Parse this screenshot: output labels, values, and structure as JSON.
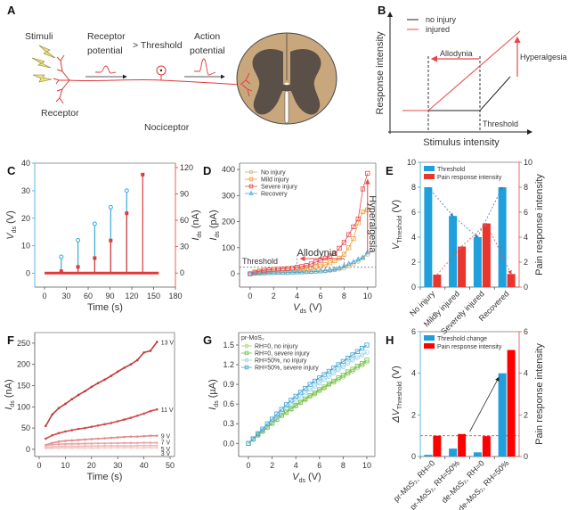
{
  "diagram_A": {
    "label": "A",
    "stimuli": "Stimuli",
    "receptor_potential": [
      "Receptor",
      "potential"
    ],
    "threshold": "> Threshold",
    "action_potential": [
      "Action",
      "potential"
    ],
    "receptor": "Receptor",
    "nociceptor": "Nociceptor",
    "colors": {
      "nerve": "#e0393b",
      "bolt": "#f0e07a",
      "white_matter": "#c9a77c",
      "gray_matter": "#5a5048"
    }
  },
  "diagram_B": {
    "label": "B",
    "legend": [
      "no injury",
      "injured"
    ],
    "allodynia": "Allodynia",
    "hyperalgesia": "Hyperalgesia",
    "threshold": "Threshold",
    "xlabel": "Stimulus intensity",
    "ylabel": "Response intensity",
    "colors": {
      "no_injury": "#222222",
      "injured": "#e8474a"
    }
  },
  "chart_data": [
    {
      "panel": "C",
      "type": "stem",
      "xlabel": "Time (s)",
      "ylabel": {
        "main": "V",
        "sub": "ds",
        "unit": " (V)"
      },
      "y2label": {
        "main": "I",
        "sub": "ds",
        "unit": " (nA)"
      },
      "xlim": [
        -13.5,
        180
      ],
      "ylim": [
        -5,
        40
      ],
      "y2lim": [
        -16,
        125
      ],
      "xticks": [
        0,
        30,
        60,
        90,
        120,
        150,
        180
      ],
      "yticks": [
        0,
        10,
        20,
        30,
        40
      ],
      "y2ticks": [
        0,
        30,
        60,
        90,
        120
      ],
      "series": [
        {
          "axis": "left",
          "marker": "open-circle",
          "color": "#3aa8d8",
          "x": [
            23,
            46,
            69,
            91,
            113
          ],
          "values": [
            6,
            12,
            18,
            24,
            30
          ]
        },
        {
          "axis": "right",
          "marker": "filled-square",
          "color": "#e03a3a",
          "x": [
            23,
            46,
            69,
            91,
            113,
            135
          ],
          "values": [
            2,
            7,
            17,
            37,
            68,
            112
          ],
          "baseline_range": [
            0,
            157
          ]
        }
      ]
    },
    {
      "panel": "D",
      "type": "line",
      "xlabel": {
        "main": "V",
        "sub": "ds",
        "unit": " (V)"
      },
      "ylabel": {
        "main": "I",
        "sub": "ds",
        "unit": " (pA)"
      },
      "xlim": [
        -0.9,
        10.7
      ],
      "ylim": [
        -51,
        424
      ],
      "xticks": [
        0,
        2,
        4,
        6,
        8,
        10
      ],
      "yticks": [
        0,
        100,
        200,
        300,
        400
      ],
      "legend_position": "top-left",
      "x": [
        0,
        0.4,
        0.8,
        1.2,
        1.6,
        2,
        2.4,
        2.8,
        3.2,
        3.6,
        4,
        4.4,
        4.8,
        5.2,
        5.6,
        6,
        6.4,
        6.8,
        7.2,
        7.6,
        8,
        8.4,
        8.8,
        9.2,
        9.6,
        10
      ],
      "series": [
        {
          "name": "No injury",
          "marker": "circle",
          "color": "#c8b48a",
          "values": [
            0,
            1,
            2,
            3,
            3,
            4,
            4,
            5,
            5,
            6,
            6,
            7,
            7,
            8,
            9,
            10,
            11,
            13,
            15,
            18,
            22,
            30,
            38,
            48,
            60,
            75
          ]
        },
        {
          "name": "Mild injury",
          "marker": "square",
          "color": "#f39c35",
          "values": [
            0,
            3,
            6,
            8,
            10,
            11,
            12,
            13,
            14,
            15,
            16,
            18,
            20,
            22,
            26,
            30,
            35,
            42,
            50,
            60,
            75,
            100,
            135,
            195,
            238,
            245
          ]
        },
        {
          "name": "Severe injury",
          "marker": "square",
          "color": "#e8474a",
          "values": [
            0,
            6,
            10,
            13,
            15,
            17,
            18,
            19,
            20,
            22,
            25,
            28,
            32,
            38,
            45,
            52,
            60,
            68,
            78,
            98,
            120,
            150,
            180,
            210,
            325,
            385
          ]
        },
        {
          "name": "Recovery",
          "marker": "triangle",
          "color": "#45a8d8",
          "values": [
            0,
            1,
            2,
            2,
            3,
            3,
            4,
            4,
            5,
            5,
            6,
            6,
            7,
            8,
            9,
            10,
            12,
            14,
            17,
            22,
            30,
            38,
            45,
            55,
            62,
            82
          ]
        }
      ],
      "annotations": {
        "threshold_label": "Threshold",
        "threshold_value": 25,
        "allodynia_label": "Allodynia",
        "allodynia_from": 8,
        "allodynia_to": 4,
        "hyperalgesia_label": "Hyperalgesia"
      }
    },
    {
      "panel": "E",
      "type": "bar",
      "categories": [
        "No injury",
        "Mildly injured",
        "Severely injured",
        "Recovered"
      ],
      "ylabel": {
        "main": "V",
        "sub": "Threshold",
        "unit": " (V)"
      },
      "y2label": "Pain response intensity",
      "ylim": [
        0,
        10
      ],
      "y2lim": [
        0,
        10
      ],
      "yticks": [
        0,
        2,
        4,
        6,
        8,
        10
      ],
      "y2ticks": [
        0,
        2,
        4,
        6,
        8,
        10
      ],
      "legend_position": "top-left",
      "series": [
        {
          "name": "Threshold",
          "axis": "left",
          "color": "#1fa0dc",
          "values": [
            8,
            5.7,
            4,
            8
          ]
        },
        {
          "name": "Pain response intensity",
          "axis": "right",
          "color": "#e8352e",
          "values": [
            1,
            3.25,
            5.1,
            1.05
          ]
        }
      ]
    },
    {
      "panel": "F",
      "type": "line",
      "xlabel": "Time (s)",
      "ylabel": {
        "main": "I",
        "sub": "ds",
        "unit": " (nA)"
      },
      "xlim": [
        -1.7,
        51.7
      ],
      "ylim": [
        -17,
        275
      ],
      "xticks": [
        0,
        10,
        20,
        30,
        40,
        50
      ],
      "yticks": [
        0,
        50,
        100,
        150,
        200,
        250
      ],
      "x": [
        2.5,
        5,
        7.5,
        10,
        12.5,
        15,
        17.5,
        20,
        22.5,
        25,
        27.5,
        30,
        32.5,
        35,
        37.5,
        40,
        42.5,
        45
      ],
      "series": [
        {
          "name": "13 V",
          "color": "#c0393b",
          "values": [
            55,
            82,
            97,
            107,
            118,
            128,
            137,
            147,
            156,
            164,
            173,
            183,
            192,
            200,
            210,
            228,
            232,
            253
          ]
        },
        {
          "name": "11 V",
          "color": "#cc4b4b",
          "values": [
            25,
            33,
            38,
            42,
            45,
            48,
            50,
            53,
            56,
            59,
            62,
            66,
            70,
            74,
            79,
            84,
            90,
            94
          ]
        },
        {
          "name": "9 V",
          "color": "#e08a8a",
          "values": [
            10,
            15,
            18,
            20,
            21,
            22,
            23,
            24,
            25,
            26,
            27,
            28,
            29,
            30,
            30,
            31,
            32,
            32
          ]
        },
        {
          "name": "7 V",
          "color": "#eaa5a5",
          "values": [
            9,
            11,
            12,
            12.5,
            13,
            13,
            13.5,
            13.5,
            14,
            14,
            14.5,
            14.5,
            15,
            15,
            15,
            15.5,
            15.5,
            15.5
          ]
        },
        {
          "name": "5 V",
          "color": "#f0bcbc",
          "values": [
            5,
            6,
            6.5,
            7,
            7,
            7,
            7.5,
            7.5,
            7.5,
            8,
            8,
            8,
            8,
            8,
            8.5,
            8.5,
            8.5,
            8.5
          ]
        },
        {
          "name": "3 V",
          "color": "#f5cccc",
          "values": [
            2,
            2.5,
            3,
            3,
            3,
            3,
            3,
            3,
            3,
            3.5,
            3.5,
            3.5,
            3.5,
            3.5,
            3.5,
            3.5,
            3.5,
            3.5
          ]
        }
      ]
    },
    {
      "panel": "G",
      "type": "line",
      "xlabel": {
        "main": "V",
        "sub": "ds",
        "unit": " (V)"
      },
      "ylabel": {
        "main": "I",
        "sub": "ds",
        "unit": " (µA)"
      },
      "xlim": [
        -0.83,
        10.68
      ],
      "ylim": [
        -0.2,
        1.69
      ],
      "xticks": [
        0,
        2,
        4,
        6,
        8,
        10
      ],
      "yticks": [
        "0.0",
        "0.3",
        "0.6",
        "0.9",
        "1.2",
        "1.5"
      ],
      "legend_title": "pr-MoS₂",
      "legend_position": "top-left",
      "x": [
        0,
        0.4,
        0.8,
        1.2,
        1.6,
        2,
        2.4,
        2.8,
        3.2,
        3.6,
        4,
        4.4,
        4.8,
        5.2,
        5.6,
        6,
        6.4,
        6.8,
        7.2,
        7.6,
        8,
        8.4,
        8.8,
        9.2,
        9.6,
        10
      ],
      "series": [
        {
          "name": "RH=0, no injury",
          "marker": "circle",
          "color": "#a8d060",
          "values": [
            0,
            0.06,
            0.12,
            0.18,
            0.24,
            0.3,
            0.36,
            0.42,
            0.47,
            0.52,
            0.57,
            0.62,
            0.66,
            0.71,
            0.75,
            0.8,
            0.84,
            0.89,
            0.93,
            0.97,
            1.01,
            1.06,
            1.1,
            1.15,
            1.19,
            1.24
          ]
        },
        {
          "name": "RH=0, severe injury",
          "marker": "square",
          "color": "#6cbf50",
          "values": [
            0,
            0.07,
            0.13,
            0.19,
            0.25,
            0.31,
            0.37,
            0.43,
            0.48,
            0.53,
            0.58,
            0.63,
            0.68,
            0.73,
            0.77,
            0.82,
            0.86,
            0.91,
            0.95,
            1.0,
            1.04,
            1.09,
            1.13,
            1.18,
            1.22,
            1.27
          ]
        },
        {
          "name": "RH=50%, no injury",
          "marker": "circle",
          "color": "#8fd0ea",
          "values": [
            0,
            0.07,
            0.14,
            0.2,
            0.27,
            0.34,
            0.41,
            0.47,
            0.54,
            0.6,
            0.66,
            0.72,
            0.77,
            0.82,
            0.87,
            0.92,
            0.97,
            1.02,
            1.07,
            1.12,
            1.17,
            1.22,
            1.27,
            1.31,
            1.35,
            1.39
          ]
        },
        {
          "name": "RH=50%, severe injury",
          "marker": "square",
          "color": "#3aa0d0",
          "values": [
            0,
            0.07,
            0.15,
            0.22,
            0.3,
            0.37,
            0.45,
            0.52,
            0.59,
            0.66,
            0.72,
            0.78,
            0.84,
            0.9,
            0.95,
            1.0,
            1.05,
            1.1,
            1.15,
            1.2,
            1.25,
            1.3,
            1.35,
            1.4,
            1.45,
            1.5
          ]
        }
      ]
    },
    {
      "panel": "H",
      "type": "bar",
      "categories": [
        "pr-MoS₂, RH=0",
        "pr-MoS₂, RH=50%",
        "de-MoS₂, RH=0",
        "de-MoS₂, RH=50%"
      ],
      "ylabel": {
        "main": "ΔV",
        "sub": "Threshold",
        "unit": " (V)"
      },
      "y2label": "Pain response intensity",
      "ylim": [
        0,
        6
      ],
      "y2lim": [
        0,
        6
      ],
      "yticks": [
        0,
        2,
        4,
        6
      ],
      "y2ticks": [
        0,
        2,
        4,
        6
      ],
      "legend_position": "top-left",
      "reference_line": 1,
      "series": [
        {
          "name": "Threshold change",
          "axis": "left",
          "color": "#1fa0dc",
          "values": [
            0.08,
            0.38,
            0.2,
            4.0
          ]
        },
        {
          "name": "Pain response intensity",
          "axis": "right",
          "color": "#ff0000",
          "values": [
            1.0,
            1.08,
            0.98,
            5.12
          ]
        }
      ]
    }
  ]
}
